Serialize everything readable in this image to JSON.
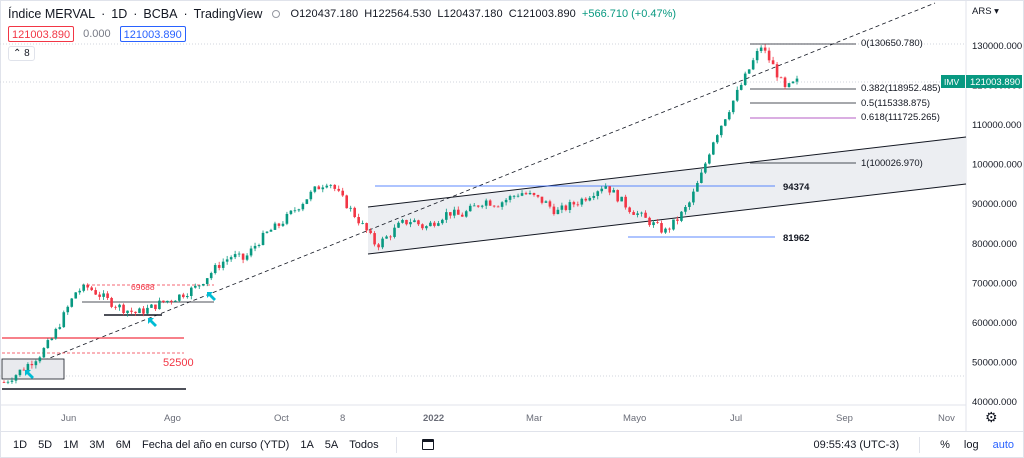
{
  "header": {
    "symbol": "Índice MERVAL",
    "interval": "1D",
    "exchange": "BCBA",
    "source": "TradingView",
    "open": "O120437.180",
    "high": "H122564.530",
    "low": "L120437.180",
    "close": "C121003.890",
    "change": "+566.710 (+0.47%)"
  },
  "price_boxes": {
    "sell": "121003.890",
    "spread": "0.000",
    "buy": "121003.890"
  },
  "indicators_collapse": "8",
  "currency": "ARS",
  "last_price_tag": {
    "symbol": "IMV",
    "value": "121003.890"
  },
  "y_axis_labels": [
    "130000.000",
    "120000.000",
    "110000.000",
    "100000.000",
    "90000.000",
    "80000.000",
    "70000.000",
    "60000.000",
    "50000.000",
    "40000.000"
  ],
  "x_axis_labels": [
    "Jun",
    "Ago",
    "Oct",
    "8",
    "2022",
    "Mar",
    "Mayo",
    "Jul",
    "Sep",
    "Nov"
  ],
  "fib_levels": [
    {
      "label": "0(130650.780)",
      "color": "#131722"
    },
    {
      "label": "0.382(118952.485)",
      "color": "#131722"
    },
    {
      "label": "0.5(115338.875)",
      "color": "#131722"
    },
    {
      "label": "0.618(111725.265)",
      "color": "#9c27b0"
    },
    {
      "label": "1(100026.970)",
      "color": "#131722"
    }
  ],
  "annotations": {
    "level_94374": "94374",
    "level_81962": "81962",
    "level_69688": "69688",
    "level_52500": "52500"
  },
  "colors": {
    "up": "#089981",
    "down": "#f23645",
    "blue": "#2962ff",
    "red_line": "#f23645",
    "channel_fill": "#e9eaee",
    "purple": "#9c27b0",
    "arrow": "#00bcd4"
  },
  "bottom_bar": {
    "timeframes": [
      "1D",
      "5D",
      "1M",
      "3M",
      "6M",
      "Fecha del año en curso (YTD)",
      "1A",
      "5A",
      "Todos"
    ],
    "time": "09:55:43 (UTC-3)",
    "percent": "%",
    "log": "log",
    "auto": "auto"
  },
  "chart_data": {
    "type": "candlestick",
    "price_range": [
      40000,
      135000
    ],
    "path_points": [
      [
        45000
      ],
      [
        47000
      ],
      [
        49500
      ],
      [
        52000
      ],
      [
        56000
      ],
      [
        62000
      ],
      [
        68000
      ],
      [
        69000
      ],
      [
        67000
      ],
      [
        65000
      ],
      [
        63500
      ],
      [
        62500
      ],
      [
        63500
      ],
      [
        65000
      ],
      [
        66000
      ],
      [
        67500
      ],
      [
        69000
      ],
      [
        72000
      ],
      [
        75000
      ],
      [
        77000
      ],
      [
        76000
      ],
      [
        80000
      ],
      [
        83000
      ],
      [
        85000
      ],
      [
        88000
      ],
      [
        91000
      ],
      [
        94000
      ],
      [
        96000
      ],
      [
        92000
      ],
      [
        88000
      ],
      [
        84000
      ],
      [
        79500
      ],
      [
        82000
      ],
      [
        85000
      ],
      [
        86000
      ],
      [
        84000
      ],
      [
        86000
      ],
      [
        88000
      ],
      [
        87000
      ],
      [
        89000
      ],
      [
        91000
      ],
      [
        90000
      ],
      [
        91500
      ],
      [
        93000
      ],
      [
        92000
      ],
      [
        90500
      ],
      [
        88000
      ],
      [
        89500
      ],
      [
        91000
      ],
      [
        93000
      ],
      [
        95000
      ],
      [
        92000
      ],
      [
        89000
      ],
      [
        87000
      ],
      [
        85000
      ],
      [
        83000
      ],
      [
        86000
      ],
      [
        90000
      ],
      [
        97000
      ],
      [
        106000
      ],
      [
        112000
      ],
      [
        118000
      ],
      [
        124000
      ],
      [
        130000
      ],
      [
        125000
      ],
      [
        119000
      ],
      [
        121000
      ]
    ]
  }
}
